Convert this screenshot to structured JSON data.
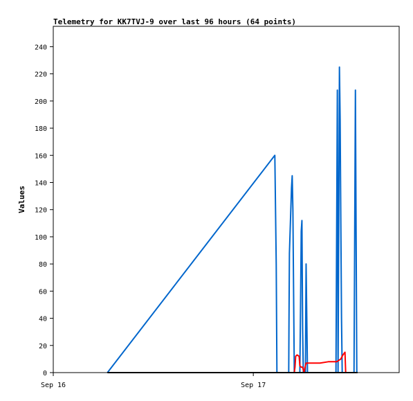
{
  "chart_data": {
    "type": "line",
    "title": "Telemetry for KK7TVJ-9 over last 96 hours (64 points)",
    "ylabel": "Values",
    "xlabel": "",
    "ylim": [
      0,
      255
    ],
    "yticks": [
      0,
      20,
      40,
      60,
      80,
      100,
      120,
      140,
      160,
      180,
      200,
      220,
      240
    ],
    "xlim": [
      "2023-09-16 00:00",
      "2023-09-17 17:30"
    ],
    "xticks": [
      {
        "label": "Sep 16",
        "x": "2023-09-16 00:00"
      },
      {
        "label": "Sep 17",
        "x": "2023-09-17 00:00"
      }
    ],
    "grid": false,
    "legend": "none",
    "series": [
      {
        "color": "#0066cc",
        "points": [
          [
            "2023-09-16 06:30",
            0
          ],
          [
            "2023-09-17 02:35",
            160
          ],
          [
            "2023-09-17 02:45",
            80
          ],
          [
            "2023-09-17 02:50",
            0
          ],
          [
            "2023-09-17 04:15",
            0
          ],
          [
            "2023-09-17 04:17",
            40
          ],
          [
            "2023-09-17 04:20",
            88
          ],
          [
            "2023-09-17 04:25",
            104
          ],
          [
            "2023-09-17 04:30",
            120
          ],
          [
            "2023-09-17 04:35",
            136
          ],
          [
            "2023-09-17 04:40",
            145
          ],
          [
            "2023-09-17 04:45",
            120
          ],
          [
            "2023-09-17 04:55",
            0
          ],
          [
            "2023-09-17 05:35",
            0
          ],
          [
            "2023-09-17 05:40",
            48
          ],
          [
            "2023-09-17 05:45",
            104
          ],
          [
            "2023-09-17 05:50",
            112
          ],
          [
            "2023-09-17 05:55",
            32
          ],
          [
            "2023-09-17 06:00",
            0
          ],
          [
            "2023-09-17 06:15",
            0
          ],
          [
            "2023-09-17 06:20",
            80
          ],
          [
            "2023-09-17 06:25",
            40
          ],
          [
            "2023-09-17 06:30",
            0
          ],
          [
            "2023-09-17 09:55",
            0
          ],
          [
            "2023-09-17 10:00",
            104
          ],
          [
            "2023-09-17 10:05",
            208
          ],
          [
            "2023-09-17 10:10",
            0
          ],
          [
            "2023-09-17 10:15",
            104
          ],
          [
            "2023-09-17 10:20",
            225
          ],
          [
            "2023-09-17 10:25",
            187
          ],
          [
            "2023-09-17 10:30",
            112
          ],
          [
            "2023-09-17 10:35",
            40
          ],
          [
            "2023-09-17 10:40",
            0
          ],
          [
            "2023-09-17 12:05",
            0
          ],
          [
            "2023-09-17 12:10",
            104
          ],
          [
            "2023-09-17 12:15",
            208
          ],
          [
            "2023-09-17 12:20",
            104
          ],
          [
            "2023-09-17 12:25",
            0
          ],
          [
            "2023-09-17 12:30",
            0
          ]
        ]
      },
      {
        "color": "#ff0000",
        "points": [
          [
            "2023-09-17 04:55",
            0
          ],
          [
            "2023-09-17 05:00",
            4
          ],
          [
            "2023-09-17 05:05",
            12
          ],
          [
            "2023-09-17 05:15",
            13
          ],
          [
            "2023-09-17 05:30",
            12
          ],
          [
            "2023-09-17 05:35",
            5
          ],
          [
            "2023-09-17 05:45",
            4
          ],
          [
            "2023-09-17 05:55",
            4
          ],
          [
            "2023-09-17 06:05",
            0
          ],
          [
            "2023-09-17 06:15",
            5
          ],
          [
            "2023-09-17 06:20",
            7
          ],
          [
            "2023-09-17 07:00",
            7
          ],
          [
            "2023-09-17 08:00",
            7
          ],
          [
            "2023-09-17 09:00",
            8
          ],
          [
            "2023-09-17 10:00",
            8
          ],
          [
            "2023-09-17 10:30",
            10
          ],
          [
            "2023-09-17 10:45",
            13
          ],
          [
            "2023-09-17 11:00",
            15
          ],
          [
            "2023-09-17 11:05",
            0
          ]
        ]
      },
      {
        "color": "#000000",
        "points": [
          [
            "2023-09-16 06:30",
            0
          ],
          [
            "2023-09-17 12:30",
            0
          ]
        ]
      }
    ]
  }
}
